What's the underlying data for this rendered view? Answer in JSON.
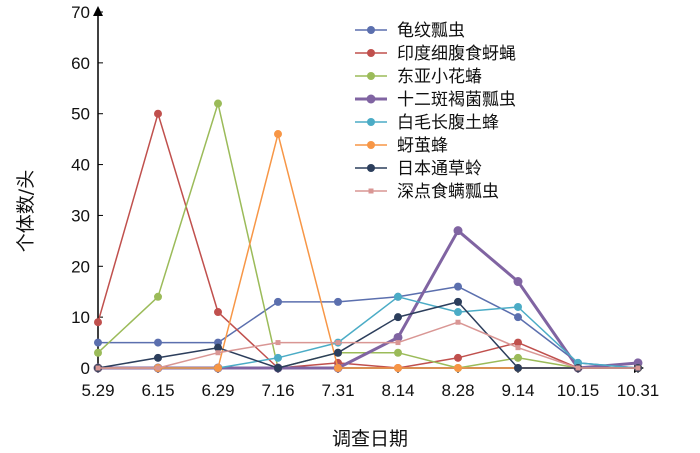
{
  "chart_data": {
    "type": "line",
    "title": "",
    "xlabel": "调查日期",
    "ylabel": "个体数/头",
    "categories": [
      "5.29",
      "6.15",
      "6.29",
      "7.16",
      "7.31",
      "8.14",
      "8.28",
      "9.14",
      "10.15",
      "10.31"
    ],
    "ylim": [
      0,
      70
    ],
    "yticks": [
      0,
      10,
      20,
      30,
      40,
      50,
      60,
      70
    ],
    "grid": false,
    "legend_position": "top-right",
    "series": [
      {
        "name": "龟纹瓢虫",
        "color": "#5b6fae",
        "width": 1.5,
        "marker": "circle",
        "values": [
          5,
          5,
          5,
          13,
          13,
          14,
          16,
          10,
          1,
          0
        ]
      },
      {
        "name": "印度细腹食蚜蝇",
        "color": "#c0504d",
        "width": 1.5,
        "marker": "circle",
        "values": [
          9,
          50,
          11,
          0,
          1,
          0,
          2,
          5,
          0,
          0
        ]
      },
      {
        "name": "东亚小花蝽",
        "color": "#9bbb59",
        "width": 1.5,
        "marker": "circle",
        "values": [
          3,
          14,
          52,
          0,
          3,
          3,
          0,
          2,
          0,
          0
        ]
      },
      {
        "name": "十二斑褐菌瓢虫",
        "color": "#8064a2",
        "width": 3,
        "marker": "circle",
        "values": [
          0,
          0,
          0,
          0,
          0,
          6,
          27,
          17,
          0,
          1
        ]
      },
      {
        "name": "白毛长腹土蜂",
        "color": "#4bacc6",
        "width": 1.5,
        "marker": "circle",
        "values": [
          0,
          0,
          0,
          2,
          5,
          14,
          11,
          12,
          1,
          0
        ]
      },
      {
        "name": "蚜茧蜂",
        "color": "#f79646",
        "width": 1.5,
        "marker": "circle",
        "values": [
          0,
          0,
          0,
          46,
          0,
          0,
          0,
          0,
          0,
          0
        ]
      },
      {
        "name": "日本通草蛉",
        "color": "#2c3e5c",
        "width": 1.5,
        "marker": "circle",
        "values": [
          0,
          2,
          4,
          0,
          3,
          10,
          13,
          0,
          0,
          0
        ]
      },
      {
        "name": "深点食螨瓢虫",
        "color": "#d99694",
        "width": 1.5,
        "marker": "square",
        "values": [
          0,
          0,
          3,
          5,
          5,
          5,
          9,
          4,
          0,
          0
        ]
      }
    ]
  }
}
